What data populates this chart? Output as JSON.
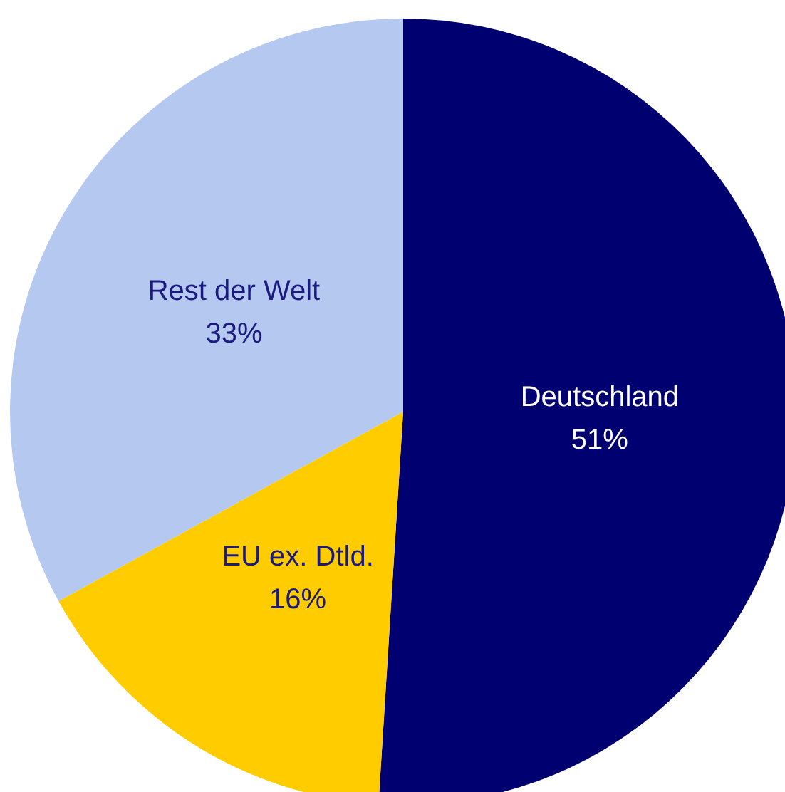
{
  "chart_data": {
    "type": "pie",
    "categories": [
      "Deutschland",
      "EU ex. Dtld.",
      "Rest der Welt"
    ],
    "values": [
      51,
      16,
      33
    ],
    "colors": [
      "#000070",
      "#ffcc00",
      "#b4c8f0"
    ],
    "value_labels": [
      "51%",
      "16%",
      "33%"
    ],
    "legend": false
  }
}
